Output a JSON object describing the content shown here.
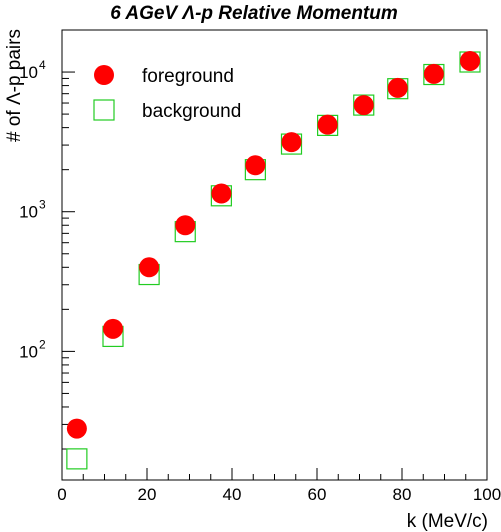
{
  "chart_data": {
    "type": "scatter",
    "title": "6 AGeV Λ-p Relative Momentum",
    "xlabel": "k (MeV/c)",
    "ylabel": "# of Λ-p pairs",
    "xlim": [
      0,
      100
    ],
    "ylim": [
      12,
      20000
    ],
    "yscale": "log",
    "x_ticks": [
      "0",
      "20",
      "40",
      "60",
      "80",
      "100"
    ],
    "y_ticks": [
      {
        "base": "10",
        "exp": "2",
        "value": 100
      },
      {
        "base": "10",
        "exp": "3",
        "value": 1000
      },
      {
        "base": "10",
        "exp": "4",
        "value": 10000
      }
    ],
    "legend_position": "top-left",
    "series": [
      {
        "name": "foreground",
        "marker": "filled-circle",
        "color": "#ff0000",
        "x": [
          3.5,
          12,
          20.5,
          29,
          37.5,
          45.5,
          54,
          62.5,
          71,
          79,
          87.5,
          96
        ],
        "y": [
          28,
          145,
          400,
          800,
          1350,
          2150,
          3150,
          4200,
          5800,
          7700,
          9700,
          12000
        ]
      },
      {
        "name": "background",
        "marker": "open-square",
        "color": "#22cc22",
        "x": [
          3.5,
          12,
          20.5,
          29,
          37.5,
          45.5,
          54,
          62.5,
          71,
          79,
          87.5,
          96
        ],
        "y": [
          17,
          128,
          355,
          720,
          1300,
          2000,
          3050,
          4150,
          5800,
          7600,
          9600,
          11800
        ]
      }
    ]
  }
}
